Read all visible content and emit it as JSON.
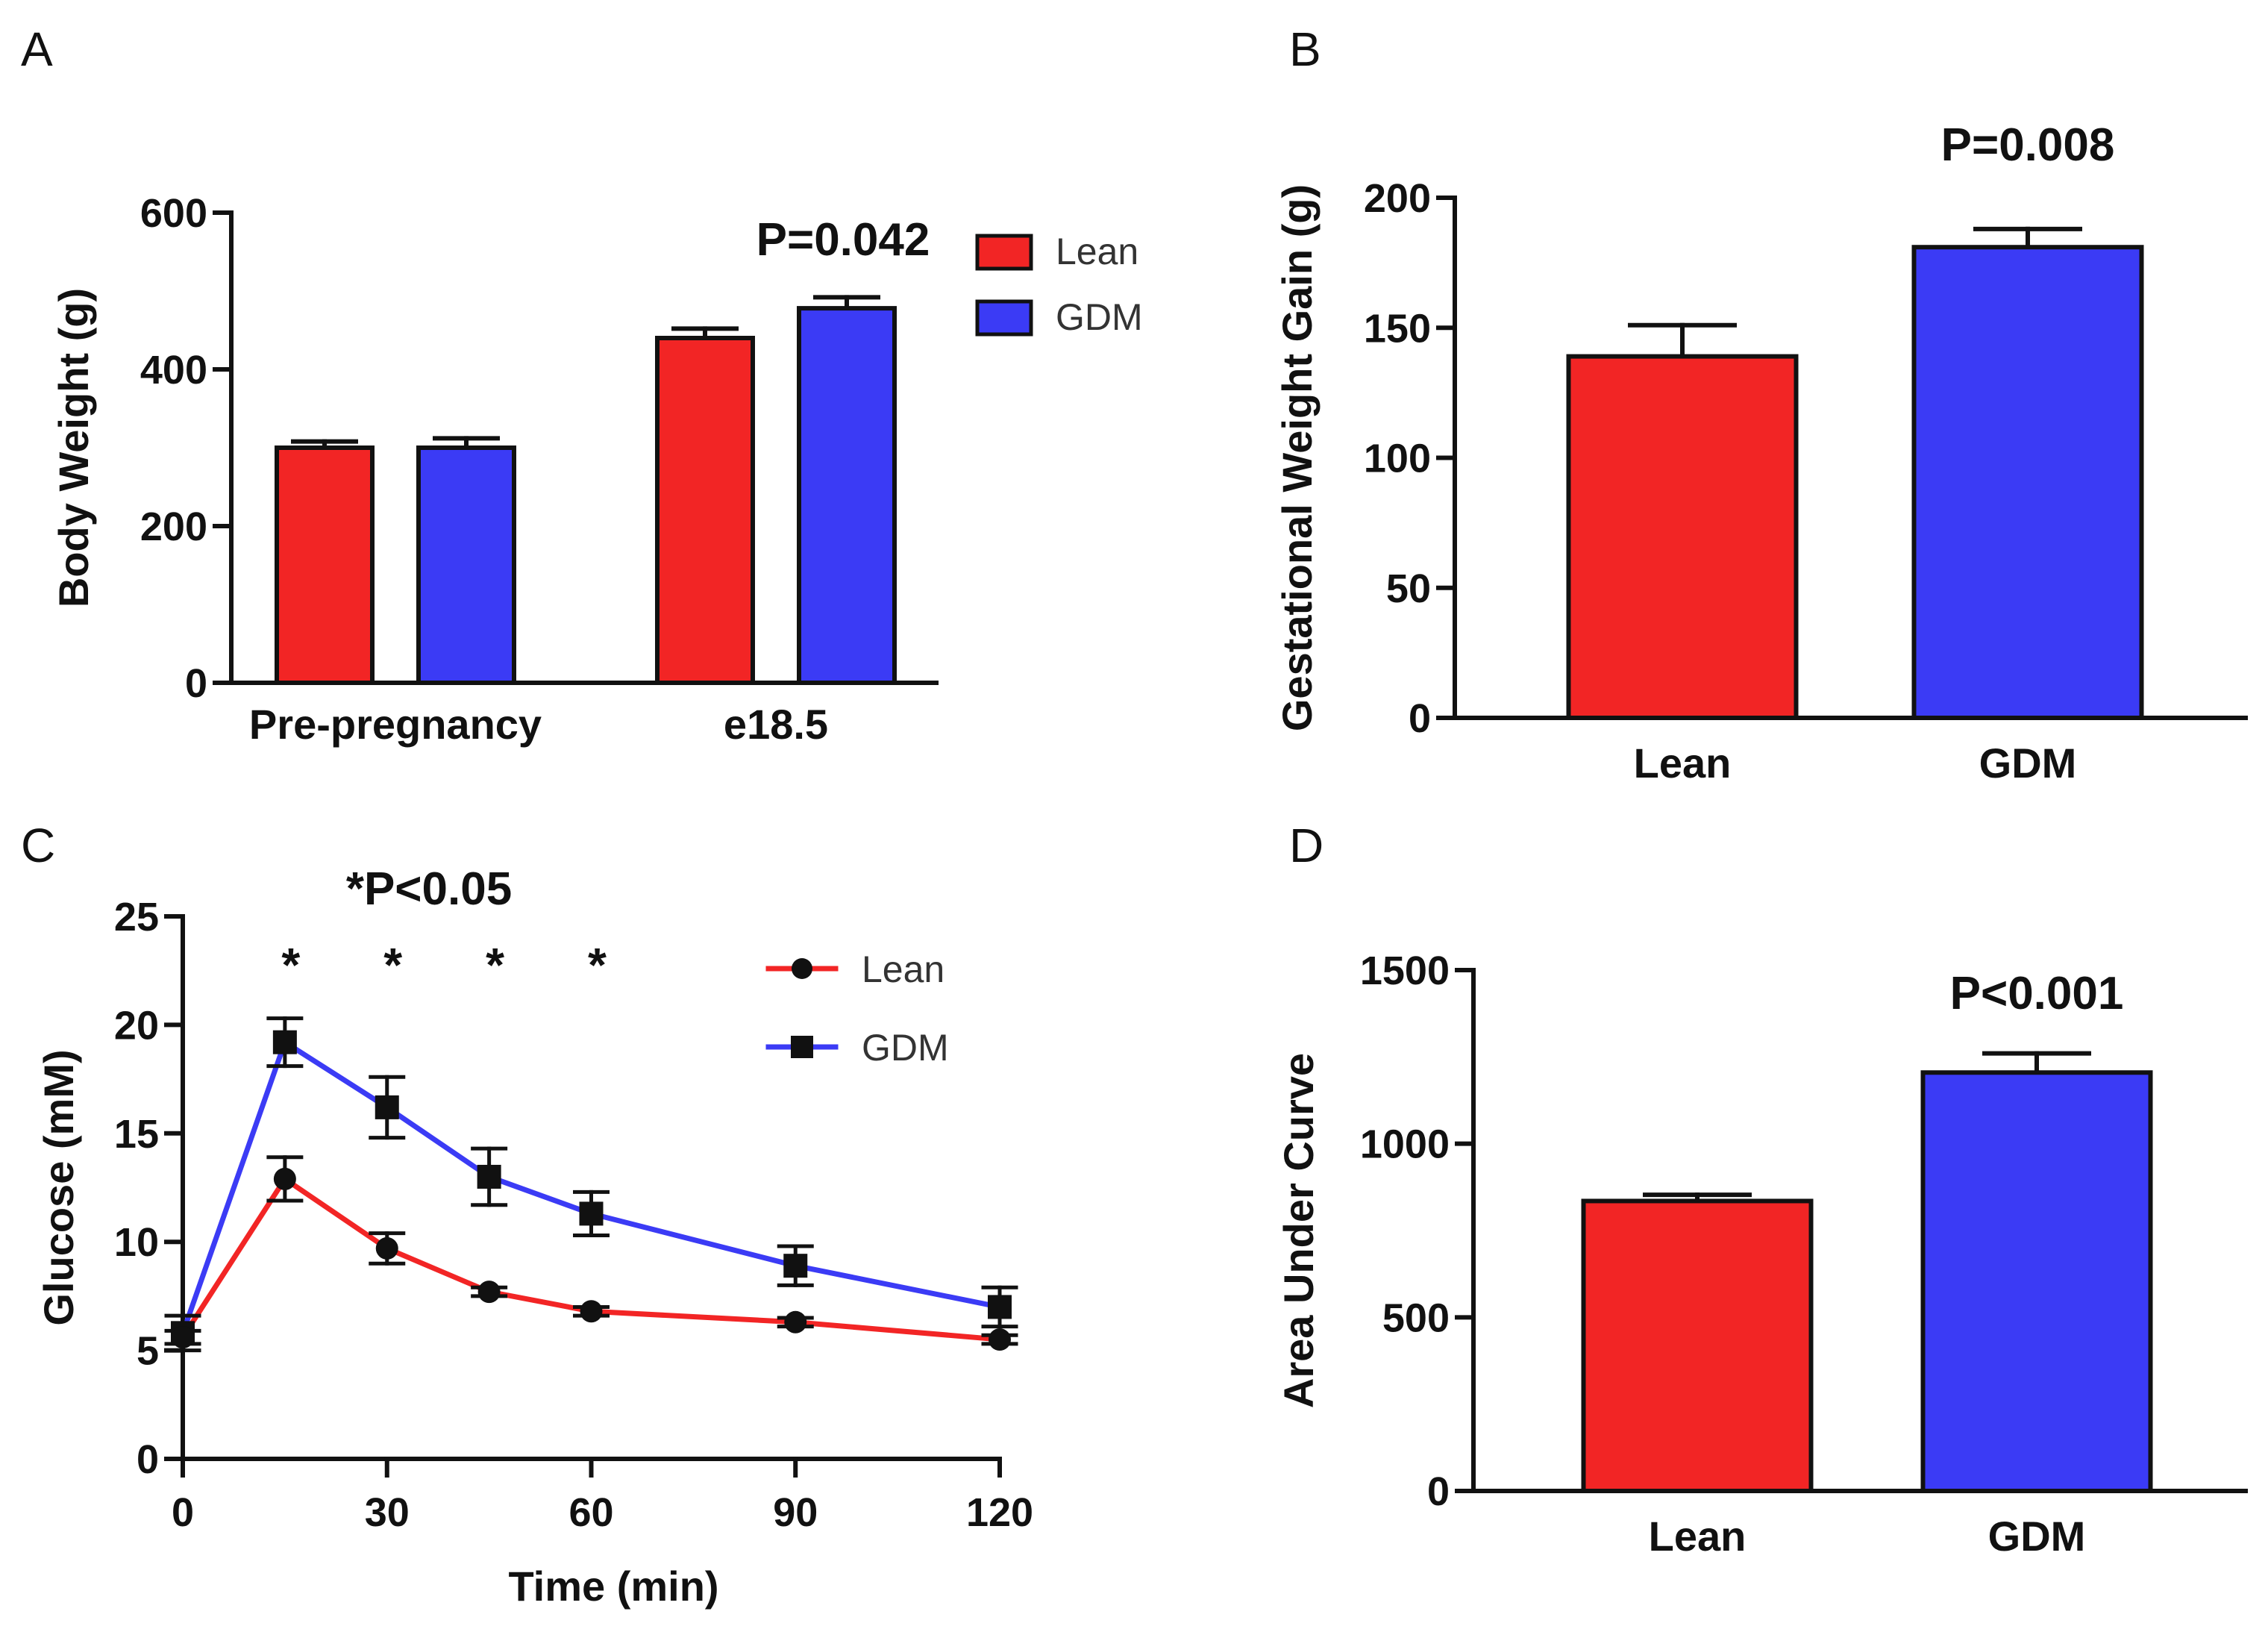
{
  "figure": {
    "panels": [
      "A",
      "B",
      "C",
      "D"
    ]
  },
  "colors": {
    "lean": "#f22525",
    "gdm": "#3b3bf5",
    "axis": "#111111"
  },
  "chart_data": [
    {
      "id": "A",
      "type": "bar",
      "panel_label": "A",
      "title": "",
      "ylabel": "Body Weight (g)",
      "xlabel": "",
      "ylim": [
        0,
        600
      ],
      "yticks": [
        0,
        200,
        400,
        600
      ],
      "categories": [
        "Pre-pregnancy",
        "e18.5"
      ],
      "series": [
        {
          "name": "Lean",
          "values": [
            300,
            440
          ],
          "errors": [
            8,
            12
          ]
        },
        {
          "name": "GDM",
          "values": [
            300,
            478
          ],
          "errors": [
            12,
            14
          ]
        }
      ],
      "annotation": "P=0.042",
      "legend": [
        "Lean",
        "GDM"
      ],
      "legend_position": "top-right"
    },
    {
      "id": "B",
      "type": "bar",
      "panel_label": "B",
      "title": "",
      "ylabel": "Gestational Weight Gain (g)",
      "xlabel": "",
      "ylim": [
        0,
        200
      ],
      "yticks": [
        0,
        50,
        100,
        150,
        200
      ],
      "categories": [
        "Lean",
        "GDM"
      ],
      "values": [
        139,
        181
      ],
      "errors": [
        12,
        7
      ],
      "annotation": "P=0.008"
    },
    {
      "id": "C",
      "type": "line",
      "panel_label": "C",
      "title": "",
      "ylabel": "Glucose (mM)",
      "xlabel": "Time (min)",
      "xlim": [
        0,
        120
      ],
      "ylim": [
        0,
        25
      ],
      "xticks": [
        0,
        30,
        60,
        90,
        120
      ],
      "yticks": [
        0,
        5,
        10,
        15,
        20,
        25
      ],
      "x": [
        0,
        15,
        30,
        45,
        60,
        90,
        120
      ],
      "series": [
        {
          "name": "Lean",
          "values": [
            5.6,
            12.9,
            9.7,
            7.7,
            6.8,
            6.3,
            5.5
          ],
          "errors": [
            0.3,
            1.0,
            0.7,
            0.2,
            0.2,
            0.2,
            0.2
          ],
          "marker": "circle"
        },
        {
          "name": "GDM",
          "values": [
            5.8,
            19.2,
            16.2,
            13.0,
            11.3,
            8.9,
            7.0
          ],
          "errors": [
            0.8,
            1.1,
            1.4,
            1.3,
            1.0,
            0.9,
            0.9
          ],
          "marker": "square"
        }
      ],
      "significance_x": [
        15,
        30,
        45,
        60
      ],
      "significance_symbol": "*",
      "annotation": "*P<0.05",
      "legend": [
        "Lean",
        "GDM"
      ],
      "legend_position": "top-right"
    },
    {
      "id": "D",
      "type": "bar",
      "panel_label": "D",
      "title": "",
      "ylabel": "Area Under Curve",
      "xlabel": "",
      "ylim": [
        0,
        1500
      ],
      "yticks": [
        0,
        500,
        1000,
        1500
      ],
      "categories": [
        "Lean",
        "GDM"
      ],
      "values": [
        835,
        1205
      ],
      "errors": [
        18,
        55
      ],
      "annotation": "P<0.001"
    }
  ]
}
